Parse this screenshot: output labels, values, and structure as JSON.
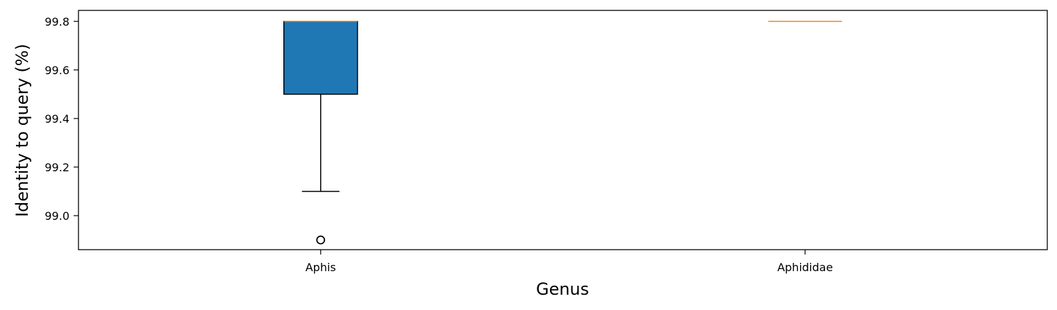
{
  "chart_data": {
    "type": "box",
    "xlabel": "Genus",
    "ylabel": "Identity to query (%)",
    "categories": [
      "Aphis",
      "Aphididae"
    ],
    "ylim": [
      98.86,
      99.845
    ],
    "yticks": [
      99.0,
      99.2,
      99.4,
      99.6,
      99.8
    ],
    "ytick_labels": [
      "99.0",
      "99.2",
      "99.4",
      "99.6",
      "99.8"
    ],
    "grid": false,
    "box_color": "#1f77b4",
    "median_color": "#ff7f0e",
    "boxes": [
      {
        "category": "Aphis",
        "whisker_low": 99.1,
        "q1": 99.5,
        "median": 99.8,
        "q3": 99.8,
        "whisker_high": 99.8,
        "outliers": [
          98.9
        ]
      },
      {
        "category": "Aphididae",
        "whisker_low": 99.8,
        "q1": 99.8,
        "median": 99.8,
        "q3": 99.8,
        "whisker_high": 99.8,
        "outliers": []
      }
    ]
  }
}
